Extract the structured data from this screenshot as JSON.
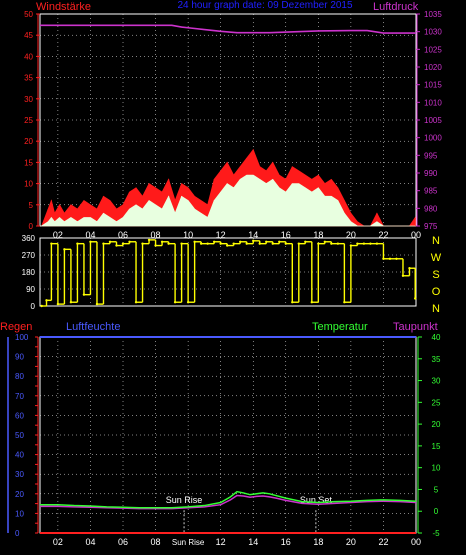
{
  "header": {
    "left_label": "Windstärke",
    "title": "24 hour graph date: 09 Dezember 2015",
    "right_label": "Luftdruck"
  },
  "colors": {
    "wind_axis": "#ff2020",
    "pressure": "#cc33cc",
    "title": "#2020ff",
    "wind_gust": "#ff1a1a",
    "wind_avg": "#e8ffe0",
    "direction": "#ffff00",
    "rain": "#ff2020",
    "humidity": "#4a5aff",
    "temperature": "#33ff33",
    "dewpoint": "#cc33cc",
    "grid": "#ffffff",
    "border": "#ffffff"
  },
  "x_ticks": [
    "02",
    "04",
    "06",
    "08",
    "10",
    "12",
    "14",
    "16",
    "18",
    "20",
    "22",
    "00"
  ],
  "bottom_x_ticks": [
    "02",
    "04",
    "06",
    "08",
    "Sun Rise",
    "12",
    "14",
    "16",
    "18",
    "20",
    "22",
    "00"
  ],
  "direction_labels": [
    "N",
    "W",
    "S",
    "O",
    "N"
  ],
  "lower_header": {
    "rain_label": "Regen",
    "humidity_label": "Luftfeuchte",
    "temperature_label": "Temperatur",
    "dewpoint_label": "Taupunkt"
  },
  "annotations": {
    "sun_rise": "Sun Rise",
    "sun_set": "Sun Set"
  },
  "chart_data": [
    {
      "type": "area",
      "title": "Windstärke",
      "x_unit": "hour",
      "xlim": [
        0.9,
        24
      ],
      "wind_ylim": [
        0,
        50
      ],
      "wind_ticks": [
        0,
        5,
        10,
        15,
        20,
        25,
        30,
        35,
        40,
        45,
        50
      ],
      "pressure_ylim": [
        975,
        1035
      ],
      "pressure_ticks": [
        975,
        980,
        985,
        990,
        995,
        1000,
        1005,
        1010,
        1015,
        1020,
        1025,
        1030,
        1035
      ],
      "series": [
        {
          "name": "Windstärke",
          "axis": "wind",
          "x": [
            1.0,
            1.4,
            1.6,
            1.8,
            2.1,
            2.4,
            2.8,
            3.2,
            3.6,
            4.0,
            4.4,
            4.8,
            5.2,
            5.6,
            6.0,
            6.4,
            6.8,
            7.2,
            7.6,
            8.0,
            8.4,
            8.8,
            9.2,
            9.6,
            10.0,
            10.4,
            10.8,
            11.2,
            11.6,
            12.0,
            12.4,
            12.8,
            13.2,
            13.6,
            14.0,
            14.4,
            14.8,
            15.2,
            15.6,
            16.0,
            16.4,
            16.8,
            17.2,
            17.6,
            18.0,
            18.4,
            18.8,
            19.2,
            19.6,
            20.0,
            20.4,
            20.8,
            21.2,
            21.6,
            22.0,
            22.4,
            22.8,
            23.2,
            23.6,
            23.95
          ],
          "y": [
            0,
            4,
            6,
            3,
            5,
            3,
            5,
            4,
            6,
            5,
            4,
            7,
            6,
            4,
            5,
            8,
            9,
            7,
            10,
            9,
            8,
            11,
            6,
            10,
            9,
            7,
            6,
            5,
            11,
            13,
            15,
            12,
            14,
            16,
            18,
            14,
            13,
            15,
            12,
            11,
            14,
            13,
            12,
            11,
            12,
            10,
            11,
            9,
            6,
            3,
            1,
            0,
            0,
            3,
            0,
            0,
            0,
            0,
            0,
            2
          ]
        },
        {
          "name": "Wind avg",
          "axis": "wind",
          "x": [
            1.0,
            1.4,
            1.6,
            1.8,
            2.1,
            2.4,
            2.8,
            3.2,
            3.6,
            4.0,
            4.4,
            4.8,
            5.2,
            5.6,
            6.0,
            6.4,
            6.8,
            7.2,
            7.6,
            8.0,
            8.4,
            8.8,
            9.2,
            9.6,
            10.0,
            10.4,
            10.8,
            11.2,
            11.6,
            12.0,
            12.4,
            12.8,
            13.2,
            13.6,
            14.0,
            14.4,
            14.8,
            15.2,
            15.6,
            16.0,
            16.4,
            16.8,
            17.2,
            17.6,
            18.0,
            18.4,
            18.8,
            19.2,
            19.6,
            20.0,
            20.4,
            20.8,
            21.2,
            21.6,
            22.0,
            22.4,
            22.8,
            23.2,
            23.6,
            23.95
          ],
          "y": [
            0,
            1,
            2,
            1,
            2,
            1,
            2,
            1,
            2,
            2,
            1,
            3,
            2,
            1,
            2,
            4,
            5,
            4,
            6,
            5,
            4,
            7,
            3,
            7,
            6,
            4,
            3,
            2,
            6,
            8,
            10,
            9,
            11,
            12,
            12,
            11,
            10,
            11,
            9,
            8,
            10,
            10,
            9,
            8,
            9,
            7,
            7,
            6,
            3,
            1,
            0,
            0,
            0,
            1,
            0,
            0,
            0,
            0,
            0,
            0
          ]
        },
        {
          "name": "Luftdruck",
          "axis": "pressure",
          "x": [
            0.9,
            3.0,
            6.0,
            9.0,
            9.6,
            10.2,
            11.0,
            12.0,
            13.0,
            15.0,
            18.0,
            20.0,
            21.0,
            22.0,
            24.0
          ],
          "y": [
            1031.8,
            1031.8,
            1031.8,
            1031.8,
            1031.3,
            1031.0,
            1030.6,
            1030.1,
            1029.7,
            1029.7,
            1030.2,
            1030.3,
            1030.3,
            1029.6,
            1029.6
          ]
        }
      ]
    },
    {
      "type": "scatter",
      "title": "Windrichtung",
      "x_unit": "hour",
      "xlim": [
        0.9,
        24
      ],
      "ylim": [
        0,
        360
      ],
      "y_ticks": [
        0,
        90,
        180,
        270,
        360
      ],
      "series": [
        {
          "name": "Windrichtung",
          "x": [
            1.0,
            1.3,
            1.6,
            2.0,
            2.4,
            2.8,
            3.2,
            3.6,
            4.0,
            4.4,
            4.8,
            5.2,
            5.6,
            6.0,
            6.4,
            6.8,
            7.2,
            7.6,
            8.0,
            8.4,
            8.8,
            9.2,
            9.6,
            10.0,
            10.4,
            10.8,
            11.2,
            11.6,
            12.0,
            12.4,
            12.8,
            13.2,
            13.6,
            14.0,
            14.4,
            14.8,
            15.2,
            15.6,
            16.0,
            16.4,
            16.8,
            17.2,
            17.6,
            18.0,
            18.4,
            18.8,
            19.2,
            19.6,
            20.0,
            20.4,
            20.8,
            21.2,
            21.6,
            22.0,
            22.4,
            22.8,
            23.2,
            23.6,
            23.95
          ],
          "y": [
            0,
            30,
            330,
            10,
            300,
            20,
            330,
            60,
            340,
            10,
            330,
            340,
            320,
            330,
            340,
            20,
            330,
            350,
            320,
            340,
            330,
            20,
            330,
            20,
            340,
            330,
            330,
            340,
            330,
            320,
            330,
            340,
            330,
            345,
            330,
            340,
            330,
            340,
            330,
            20,
            330,
            340,
            20,
            330,
            340,
            330,
            330,
            20,
            320,
            330,
            330,
            330,
            330,
            250,
            250,
            250,
            160,
            200,
            40
          ]
        }
      ]
    },
    {
      "type": "line",
      "title": "Temperatur / Taupunkt",
      "x_unit": "hour",
      "xlim": [
        0.9,
        24
      ],
      "left_ylim": [
        0,
        100
      ],
      "left_ticks": [
        0,
        10,
        20,
        30,
        40,
        50,
        60,
        70,
        80,
        90,
        100
      ],
      "rain_ticks": [
        0,
        5,
        10,
        15,
        20,
        25,
        30,
        35,
        40,
        45,
        50,
        55,
        60,
        65,
        70,
        75,
        80,
        85,
        90,
        95,
        100
      ],
      "temp_ylim": [
        -5,
        40
      ],
      "temp_ticks": [
        -5,
        0,
        5,
        10,
        15,
        20,
        25,
        30,
        35,
        40
      ],
      "sun_rise_hour": 9.75,
      "sun_set_hour": 17.85,
      "series": [
        {
          "name": "Regen",
          "axis": "rain",
          "x": [
            0.9,
            24
          ],
          "y": [
            0,
            0
          ]
        },
        {
          "name": "Luftfeuchte",
          "axis": "humidity",
          "x": [
            0.9,
            24
          ],
          "y": [
            100,
            100
          ]
        },
        {
          "name": "Temperatur",
          "axis": "temp",
          "x": [
            0.9,
            2,
            3,
            4,
            5,
            6,
            7,
            8,
            9,
            10,
            11,
            12,
            12.6,
            13.0,
            13.4,
            13.8,
            14.2,
            14.6,
            15.0,
            15.4,
            16,
            17,
            18,
            19,
            20,
            21,
            22,
            23,
            24
          ],
          "y": [
            1.5,
            1.5,
            1.3,
            1.2,
            1.0,
            0.9,
            0.8,
            0.8,
            0.8,
            1.0,
            1.3,
            2.0,
            3.3,
            4.5,
            4.2,
            3.8,
            4.0,
            4.2,
            4.0,
            3.6,
            3.0,
            2.2,
            2.0,
            2.2,
            2.3,
            2.5,
            2.6,
            2.5,
            2.3
          ]
        },
        {
          "name": "Taupunkt",
          "axis": "temp",
          "x": [
            0.9,
            2,
            3,
            4,
            5,
            6,
            7,
            8,
            9,
            10,
            11,
            12,
            12.6,
            13.0,
            13.4,
            13.8,
            14.2,
            14.6,
            15.0,
            15.4,
            16,
            17,
            18,
            19,
            20,
            21,
            22,
            23,
            24
          ],
          "y": [
            1.1,
            1.1,
            1.0,
            0.9,
            0.8,
            0.7,
            0.6,
            0.6,
            0.6,
            0.8,
            1.0,
            1.5,
            2.6,
            3.6,
            3.5,
            3.2,
            3.4,
            3.5,
            3.3,
            3.0,
            2.5,
            1.8,
            1.6,
            1.8,
            2.0,
            2.2,
            2.3,
            2.2,
            2.0
          ]
        }
      ]
    }
  ]
}
